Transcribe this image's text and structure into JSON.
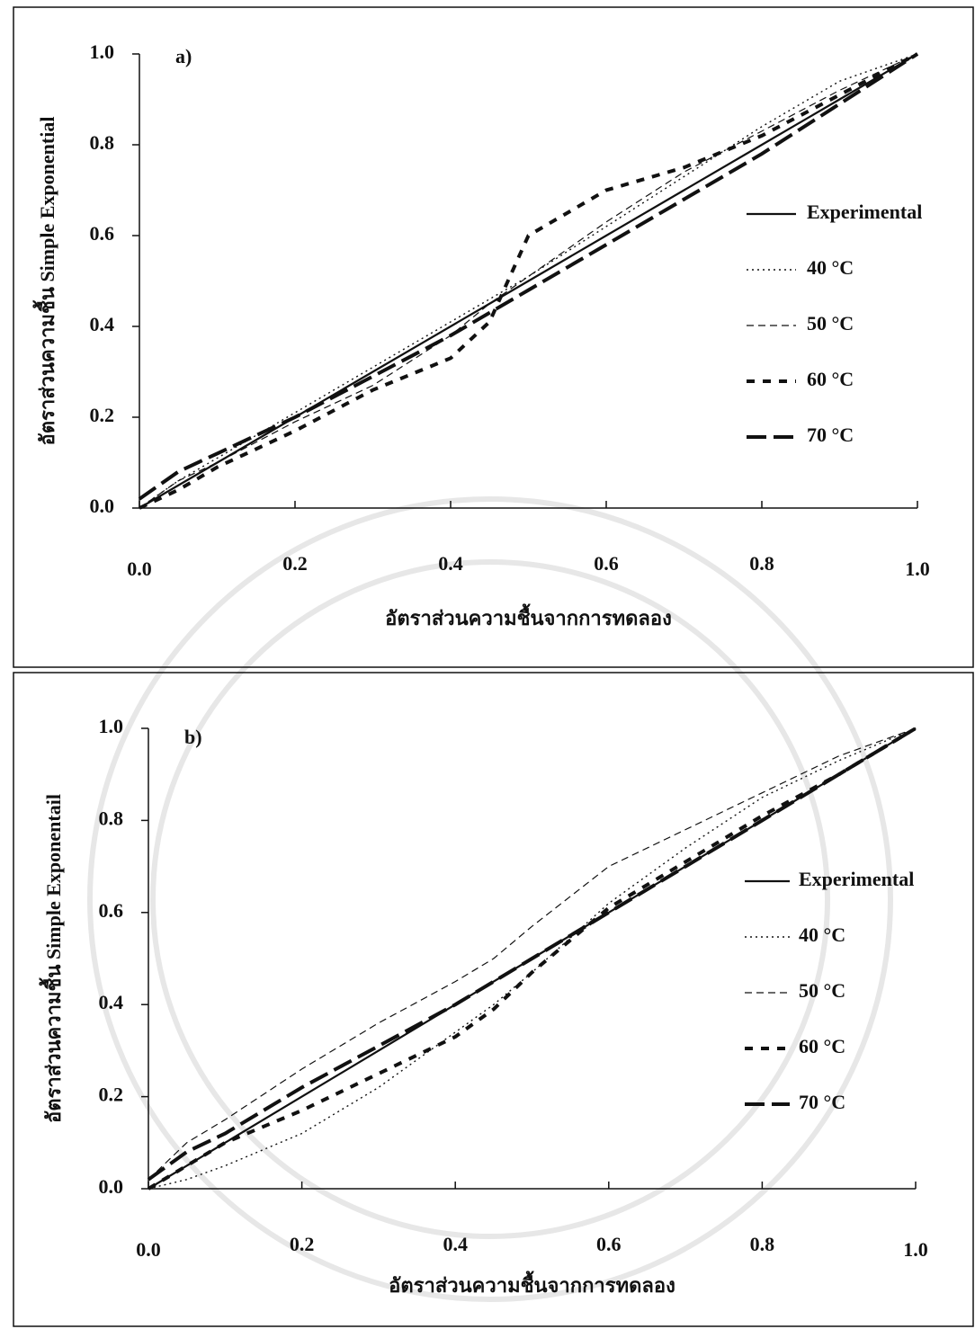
{
  "chart_data": [
    {
      "type": "line",
      "panel_label": "a)",
      "ylabel": "อัตราส่วนความชื้น Simple Exponential",
      "xlabel": "อัตราส่วนความชื้นจากการทดลอง",
      "xlim": [
        0,
        1
      ],
      "ylim": [
        0,
        1
      ],
      "xticks": [
        {
          "value": 0,
          "label": "0.0"
        },
        0.2,
        0.4,
        0.6,
        0.8,
        {
          "value": 1,
          "label": "1.0"
        }
      ],
      "yticks": [
        {
          "value": 0,
          "label": "0.0"
        },
        0.2,
        0.4,
        0.6,
        0.8,
        {
          "value": 1,
          "label": "1.0"
        }
      ],
      "x": [
        0,
        0.05,
        0.1,
        0.2,
        0.3,
        0.4,
        0.45,
        0.5,
        0.6,
        0.7,
        0.8,
        0.9,
        1.0
      ],
      "series": [
        {
          "name": "Experimental",
          "color": "#111111",
          "dash": "solid",
          "values": [
            0,
            0.05,
            0.1,
            0.2,
            0.3,
            0.4,
            0.45,
            0.5,
            0.6,
            0.7,
            0.8,
            0.9,
            1.0
          ]
        },
        {
          "name": "40 °C",
          "color": "#111111",
          "dash": "dotted",
          "values": [
            0,
            0.06,
            0.11,
            0.21,
            0.31,
            0.41,
            0.46,
            0.51,
            0.62,
            0.73,
            0.84,
            0.94,
            1.0
          ]
        },
        {
          "name": "50 °C",
          "color": "#111111",
          "dash": "dashed",
          "values": [
            0,
            0.06,
            0.1,
            0.19,
            0.27,
            0.38,
            0.45,
            0.51,
            0.63,
            0.74,
            0.83,
            0.92,
            1.0
          ]
        },
        {
          "name": "60 °C",
          "color": "#111111",
          "dash": "bold-dashed",
          "values": [
            0,
            0.04,
            0.09,
            0.17,
            0.26,
            0.33,
            0.41,
            0.6,
            0.7,
            0.75,
            0.82,
            0.91,
            1.0
          ]
        },
        {
          "name": "70 °C",
          "color": "#111111",
          "dash": "long-dashed",
          "values": [
            0.02,
            0.08,
            0.12,
            0.2,
            0.29,
            0.38,
            0.43,
            0.48,
            0.58,
            0.68,
            0.78,
            0.89,
            1.0
          ]
        }
      ]
    },
    {
      "type": "line",
      "panel_label": "b)",
      "ylabel": "อัตราส่วนความชื้น Simple Exponentail",
      "xlabel": "อัตราส่วนความชื้นจากการทดลอง",
      "xlim": [
        0,
        1
      ],
      "ylim": [
        0,
        1
      ],
      "xticks": [
        {
          "value": 0,
          "label": "0.0"
        },
        0.2,
        0.4,
        0.6,
        0.8,
        {
          "value": 1,
          "label": "1.0"
        }
      ],
      "yticks": [
        {
          "value": 0,
          "label": "0.0"
        },
        0.2,
        0.4,
        0.6,
        0.8,
        {
          "value": 1,
          "label": "1.0"
        }
      ],
      "x": [
        0,
        0.05,
        0.1,
        0.2,
        0.3,
        0.4,
        0.45,
        0.5,
        0.6,
        0.7,
        0.8,
        0.9,
        1.0
      ],
      "series": [
        {
          "name": "Experimental",
          "color": "#111111",
          "dash": "solid",
          "values": [
            0,
            0.05,
            0.1,
            0.2,
            0.3,
            0.4,
            0.45,
            0.5,
            0.6,
            0.7,
            0.8,
            0.9,
            1.0
          ]
        },
        {
          "name": "40 °C",
          "color": "#111111",
          "dash": "dotted",
          "values": [
            0,
            0.02,
            0.05,
            0.12,
            0.22,
            0.34,
            0.4,
            0.47,
            0.62,
            0.74,
            0.85,
            0.93,
            1.0
          ]
        },
        {
          "name": "50 °C",
          "color": "#111111",
          "dash": "dashed",
          "values": [
            0.02,
            0.1,
            0.15,
            0.26,
            0.36,
            0.45,
            0.5,
            0.57,
            0.7,
            0.78,
            0.86,
            0.94,
            1.0
          ]
        },
        {
          "name": "60 °C",
          "color": "#111111",
          "dash": "bold-dashed",
          "values": [
            0,
            0.05,
            0.1,
            0.17,
            0.25,
            0.33,
            0.39,
            0.47,
            0.61,
            0.71,
            0.81,
            0.9,
            1.0
          ]
        },
        {
          "name": "70 °C",
          "color": "#111111",
          "dash": "long-dashed",
          "values": [
            0.02,
            0.08,
            0.12,
            0.22,
            0.31,
            0.4,
            0.45,
            0.5,
            0.6,
            0.7,
            0.8,
            0.9,
            1.0
          ]
        }
      ]
    }
  ]
}
